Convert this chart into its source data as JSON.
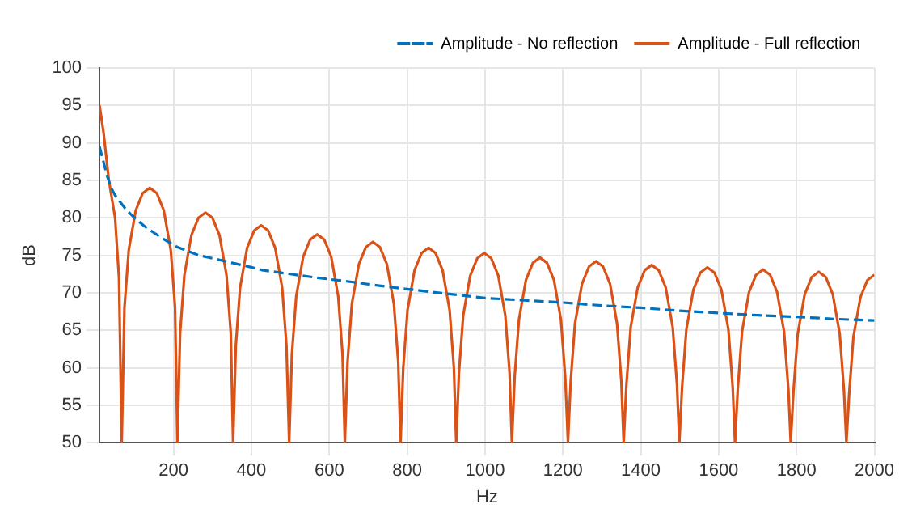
{
  "chart_data": {
    "type": "line",
    "xlabel": "Hz",
    "ylabel": "dB",
    "xlim": [
      10,
      2000
    ],
    "xticks": [
      200,
      400,
      600,
      800,
      1000,
      1200,
      1400,
      1600,
      1800,
      2000
    ],
    "ylim": [
      50,
      100
    ],
    "yticks": [
      50,
      55,
      60,
      65,
      70,
      75,
      80,
      85,
      90,
      95,
      100
    ],
    "grid": true,
    "legend": "top right",
    "marker": "none",
    "series": [
      {
        "name": "Amplitude - No reflection",
        "color": "#0072bd",
        "line_style": "dashed",
        "x": [
          10,
          20,
          30,
          40,
          50,
          60,
          80,
          100,
          125,
          150,
          180,
          210,
          240,
          265,
          300,
          350,
          400,
          430,
          500,
          570,
          650,
          720,
          800,
          880,
          950,
          1000,
          1100,
          1200,
          1300,
          1400,
          1500,
          1600,
          1700,
          1800,
          1900,
          2000
        ],
        "values": [
          89.5,
          87.5,
          85.5,
          84,
          83,
          82.3,
          81,
          80,
          78.9,
          78,
          77,
          76.1,
          75.5,
          75,
          74.6,
          74,
          73.4,
          73,
          72.5,
          72,
          71.5,
          71,
          70.5,
          70,
          69.6,
          69.3,
          69,
          68.7,
          68.3,
          68,
          67.6,
          67.3,
          67,
          66.8,
          66.5,
          66.3
        ]
      },
      {
        "name": "Amplitude - Full reflection",
        "color": "#d95319",
        "line_style": "solid",
        "x": [
          10,
          20,
          34,
          50,
          60,
          67,
          74,
          85,
          103,
          121,
          139,
          157,
          175,
          193,
          204,
          210,
          217,
          228,
          246,
          264,
          282,
          300,
          318,
          336,
          347,
          353,
          360,
          371,
          389,
          407,
          425,
          443,
          461,
          479,
          490,
          497,
          504,
          515,
          533,
          551,
          569,
          587,
          605,
          623,
          634,
          640,
          647,
          658,
          676,
          694,
          712,
          730,
          748,
          766,
          777,
          783,
          790,
          801,
          819,
          837,
          855,
          873,
          891,
          909,
          920,
          926,
          933,
          944,
          962,
          980,
          998,
          1016,
          1034,
          1052,
          1063,
          1069,
          1076,
          1087,
          1105,
          1123,
          1141,
          1159,
          1177,
          1195,
          1206,
          1213,
          1220,
          1231,
          1249,
          1267,
          1285,
          1303,
          1321,
          1339,
          1350,
          1356,
          1363,
          1374,
          1392,
          1410,
          1428,
          1446,
          1464,
          1482,
          1493,
          1499,
          1506,
          1517,
          1535,
          1553,
          1571,
          1589,
          1607,
          1625,
          1636,
          1642,
          1649,
          1660,
          1678,
          1696,
          1714,
          1732,
          1750,
          1768,
          1779,
          1785,
          1792,
          1803,
          1821,
          1839,
          1857,
          1875,
          1893,
          1911,
          1922,
          1928,
          1935,
          1946,
          1964,
          1982,
          2000
        ],
        "values": [
          95,
          91.5,
          85,
          80,
          72,
          50,
          68,
          75.7,
          81,
          83.3,
          84,
          83.3,
          81,
          75.7,
          68,
          50,
          64.7,
          72.4,
          77.7,
          80,
          80.7,
          80,
          77.7,
          72.4,
          64.7,
          50,
          63,
          70.7,
          76,
          78.3,
          79,
          78.3,
          76,
          70.7,
          63,
          50,
          61.8,
          69.5,
          74.8,
          77.1,
          77.8,
          77.1,
          74.8,
          69.5,
          61.8,
          50,
          60.8,
          68.5,
          73.8,
          76.1,
          76.8,
          76.1,
          73.8,
          68.5,
          60.8,
          50,
          60,
          67.7,
          73,
          75.3,
          76,
          75.3,
          73,
          67.7,
          60,
          50,
          59.3,
          67,
          72.3,
          74.6,
          75.3,
          74.6,
          72.3,
          67,
          59.3,
          50,
          58.7,
          66.4,
          71.7,
          74,
          74.7,
          74,
          71.7,
          66.4,
          58.7,
          50,
          58.2,
          65.9,
          71.2,
          73.5,
          74.2,
          73.5,
          71.2,
          65.9,
          58.2,
          50,
          57.7,
          65.4,
          70.7,
          73,
          73.7,
          73,
          70.7,
          65.4,
          57.7,
          50,
          57.4,
          65.1,
          70.4,
          72.7,
          73.4,
          72.7,
          70.4,
          65.1,
          57.4,
          50,
          57.1,
          64.8,
          70.1,
          72.4,
          73.1,
          72.4,
          70.1,
          64.8,
          57.1,
          50,
          56.8,
          64.5,
          69.8,
          72.1,
          72.8,
          72.1,
          69.8,
          64.5,
          56.8,
          50,
          56.4,
          64.1,
          69.4,
          71.7,
          72.4
        ]
      }
    ]
  }
}
